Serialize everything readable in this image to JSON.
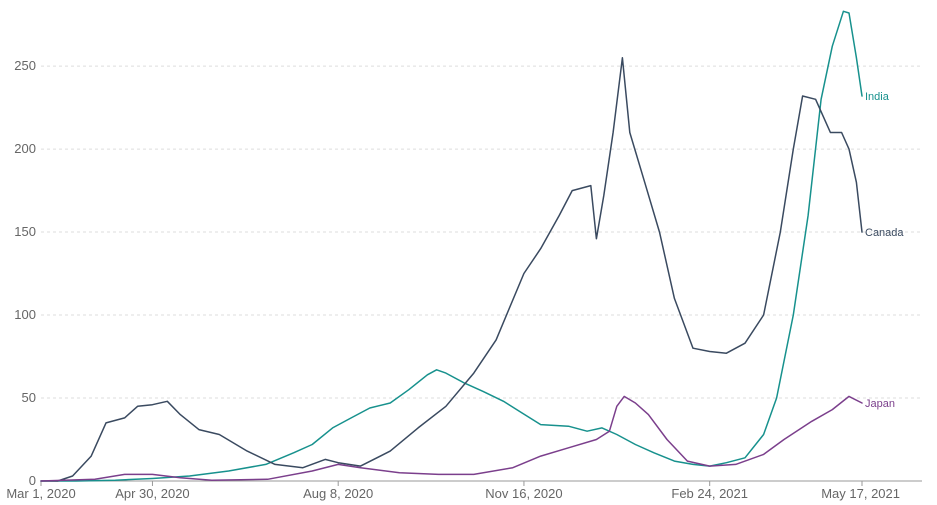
{
  "chart_data": {
    "type": "line",
    "title": "",
    "xlabel": "",
    "ylabel": "",
    "ylim": [
      0,
      285
    ],
    "xlim": [
      "2020-03-01",
      "2021-05-17"
    ],
    "grid": "horizontal",
    "legend": "inline-right",
    "y_ticks": [
      0,
      50,
      100,
      150,
      200,
      250
    ],
    "x_ticks": [
      "2020-03-01",
      "2020-04-30",
      "2020-08-08",
      "2020-11-16",
      "2021-02-24",
      "2021-05-17"
    ],
    "x_tick_labels": [
      "Mar 1, 2020",
      "Apr 30, 2020",
      "Aug 8, 2020",
      "Nov 16, 2020",
      "Feb 24, 2021",
      "May 17, 2021"
    ],
    "series": [
      {
        "name": "India",
        "color": "#17918d",
        "points": [
          [
            "2020-03-01",
            0
          ],
          [
            "2020-03-20",
            0
          ],
          [
            "2020-04-10",
            0.5
          ],
          [
            "2020-04-30",
            1.5
          ],
          [
            "2020-05-20",
            3
          ],
          [
            "2020-06-10",
            6
          ],
          [
            "2020-06-30",
            10
          ],
          [
            "2020-07-15",
            17
          ],
          [
            "2020-07-25",
            22
          ],
          [
            "2020-08-05",
            32
          ],
          [
            "2020-08-15",
            38
          ],
          [
            "2020-08-25",
            44
          ],
          [
            "2020-09-05",
            47
          ],
          [
            "2020-09-15",
            55
          ],
          [
            "2020-09-25",
            64
          ],
          [
            "2020-09-30",
            67
          ],
          [
            "2020-10-05",
            65
          ],
          [
            "2020-10-15",
            59
          ],
          [
            "2020-10-25",
            54
          ],
          [
            "2020-11-05",
            48
          ],
          [
            "2020-11-15",
            41
          ],
          [
            "2020-11-25",
            34
          ],
          [
            "2020-12-10",
            33
          ],
          [
            "2020-12-20",
            30
          ],
          [
            "2020-12-28",
            32
          ],
          [
            "2021-01-05",
            28
          ],
          [
            "2021-01-15",
            22
          ],
          [
            "2021-01-25",
            17
          ],
          [
            "2021-02-05",
            12
          ],
          [
            "2021-02-15",
            10
          ],
          [
            "2021-02-24",
            9
          ],
          [
            "2021-03-05",
            11
          ],
          [
            "2021-03-15",
            14
          ],
          [
            "2021-03-25",
            28
          ],
          [
            "2021-04-01",
            50
          ],
          [
            "2021-04-10",
            100
          ],
          [
            "2021-04-18",
            160
          ],
          [
            "2021-04-25",
            230
          ],
          [
            "2021-05-01",
            262
          ],
          [
            "2021-05-07",
            283
          ],
          [
            "2021-05-10",
            282
          ],
          [
            "2021-05-14",
            255
          ],
          [
            "2021-05-17",
            232
          ]
        ]
      },
      {
        "name": "Canada",
        "color": "#3a4a60",
        "points": [
          [
            "2020-03-01",
            0
          ],
          [
            "2020-03-10",
            0
          ],
          [
            "2020-03-18",
            3
          ],
          [
            "2020-03-28",
            15
          ],
          [
            "2020-04-05",
            35
          ],
          [
            "2020-04-15",
            38
          ],
          [
            "2020-04-22",
            45
          ],
          [
            "2020-04-30",
            46
          ],
          [
            "2020-05-08",
            48
          ],
          [
            "2020-05-15",
            40
          ],
          [
            "2020-05-25",
            31
          ],
          [
            "2020-06-05",
            28
          ],
          [
            "2020-06-20",
            18
          ],
          [
            "2020-07-05",
            10
          ],
          [
            "2020-07-20",
            8
          ],
          [
            "2020-08-01",
            13
          ],
          [
            "2020-08-08",
            11
          ],
          [
            "2020-08-20",
            9
          ],
          [
            "2020-09-05",
            18
          ],
          [
            "2020-09-20",
            32
          ],
          [
            "2020-10-05",
            45
          ],
          [
            "2020-10-20",
            65
          ],
          [
            "2020-11-01",
            85
          ],
          [
            "2020-11-16",
            125
          ],
          [
            "2020-11-25",
            140
          ],
          [
            "2020-12-05",
            160
          ],
          [
            "2020-12-12",
            175
          ],
          [
            "2020-12-22",
            178
          ],
          [
            "2020-12-25",
            146
          ],
          [
            "2020-12-29",
            172
          ],
          [
            "2021-01-03",
            210
          ],
          [
            "2021-01-08",
            255
          ],
          [
            "2021-01-12",
            210
          ],
          [
            "2021-01-20",
            180
          ],
          [
            "2021-01-28",
            150
          ],
          [
            "2021-02-05",
            110
          ],
          [
            "2021-02-15",
            80
          ],
          [
            "2021-02-24",
            78
          ],
          [
            "2021-03-05",
            77
          ],
          [
            "2021-03-15",
            83
          ],
          [
            "2021-03-25",
            100
          ],
          [
            "2021-04-03",
            150
          ],
          [
            "2021-04-10",
            200
          ],
          [
            "2021-04-15",
            232
          ],
          [
            "2021-04-22",
            230
          ],
          [
            "2021-04-30",
            210
          ],
          [
            "2021-05-06",
            210
          ],
          [
            "2021-05-10",
            200
          ],
          [
            "2021-05-14",
            180
          ],
          [
            "2021-05-17",
            150
          ]
        ]
      },
      {
        "name": "Japan",
        "color": "#7b3f8c",
        "points": [
          [
            "2020-03-01",
            0
          ],
          [
            "2020-03-30",
            1
          ],
          [
            "2020-04-15",
            4
          ],
          [
            "2020-04-30",
            4
          ],
          [
            "2020-05-15",
            2
          ],
          [
            "2020-06-01",
            0.5
          ],
          [
            "2020-07-01",
            1
          ],
          [
            "2020-07-25",
            6
          ],
          [
            "2020-08-08",
            10
          ],
          [
            "2020-08-20",
            8
          ],
          [
            "2020-09-10",
            5
          ],
          [
            "2020-10-01",
            4
          ],
          [
            "2020-10-20",
            4
          ],
          [
            "2020-11-10",
            8
          ],
          [
            "2020-11-25",
            15
          ],
          [
            "2020-12-10",
            20
          ],
          [
            "2020-12-25",
            25
          ],
          [
            "2021-01-01",
            30
          ],
          [
            "2021-01-05",
            45
          ],
          [
            "2021-01-09",
            51
          ],
          [
            "2021-01-15",
            47
          ],
          [
            "2021-01-22",
            40
          ],
          [
            "2021-02-01",
            25
          ],
          [
            "2021-02-12",
            12
          ],
          [
            "2021-02-24",
            9
          ],
          [
            "2021-03-10",
            10
          ],
          [
            "2021-03-25",
            16
          ],
          [
            "2021-04-05",
            25
          ],
          [
            "2021-04-20",
            36
          ],
          [
            "2021-05-01",
            43
          ],
          [
            "2021-05-10",
            51
          ],
          [
            "2021-05-17",
            47
          ]
        ]
      }
    ]
  }
}
